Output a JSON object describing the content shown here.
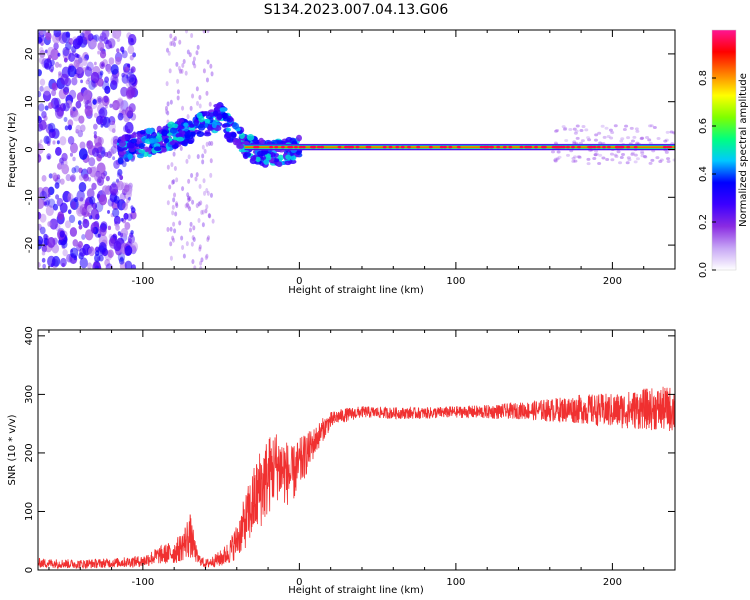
{
  "title": "S134.2023.007.04.13.G06",
  "chart_data": [
    {
      "type": "heatmap",
      "xlabel": "Height of straight line (km)",
      "ylabel": "Frequency (Hz)",
      "xlim": [
        -167,
        240
      ],
      "ylim": [
        -25,
        25
      ],
      "xticks": [
        -100,
        0,
        100,
        200
      ],
      "yticks": [
        -20,
        -10,
        0,
        10,
        20
      ],
      "colorbar": {
        "label": "Normalized spectral amplitude",
        "range": [
          0,
          1
        ],
        "ticks": [
          0.0,
          0.2,
          0.4,
          0.6,
          0.8
        ],
        "colormap": [
          "#ffffff",
          "#c7a6f5",
          "#8a2be2",
          "#3c00ff",
          "#0000ff",
          "#00c8ff",
          "#00ff80",
          "#7fff00",
          "#ffff00",
          "#ff8000",
          "#ff0000",
          "#ff1493"
        ]
      },
      "features": {
        "carrier_line_freq_hz": 0.5,
        "carrier_start_km": -35,
        "noisy_region_end_km": -115,
        "drift_segment": [
          [
            -115,
            0
          ],
          [
            -90,
            2
          ],
          [
            -70,
            4
          ],
          [
            -50,
            7
          ],
          [
            -42,
            3
          ],
          [
            -30,
            0
          ],
          [
            -20,
            -1
          ],
          [
            0,
            0
          ]
        ]
      }
    },
    {
      "type": "line",
      "xlabel": "Height of straight line (km)",
      "ylabel": "SNR (10 * v/v)",
      "xlim": [
        -167,
        240
      ],
      "ylim": [
        0,
        410
      ],
      "xticks": [
        -100,
        0,
        100,
        200
      ],
      "yticks": [
        0,
        100,
        200,
        300,
        400
      ],
      "color": "#f03030",
      "x": [
        -167,
        -140,
        -120,
        -100,
        -90,
        -80,
        -75,
        -70,
        -65,
        -60,
        -55,
        -50,
        -45,
        -40,
        -35,
        -30,
        -25,
        -20,
        -15,
        -10,
        -5,
        0,
        5,
        10,
        15,
        20,
        25,
        30,
        40,
        60,
        80,
        100,
        120,
        140,
        160,
        180,
        200,
        220,
        240
      ],
      "y": [
        12,
        10,
        12,
        15,
        25,
        30,
        40,
        60,
        20,
        10,
        15,
        20,
        30,
        50,
        80,
        110,
        140,
        160,
        180,
        170,
        160,
        180,
        200,
        220,
        240,
        255,
        262,
        265,
        270,
        268,
        268,
        270,
        270,
        272,
        273,
        275,
        272,
        275,
        275
      ],
      "noise_amplitude": [
        8,
        8,
        8,
        10,
        15,
        20,
        25,
        40,
        10,
        8,
        10,
        15,
        20,
        30,
        45,
        60,
        70,
        70,
        60,
        60,
        50,
        45,
        35,
        25,
        20,
        15,
        12,
        12,
        10,
        10,
        10,
        10,
        12,
        14,
        20,
        25,
        30,
        35,
        40
      ]
    }
  ]
}
